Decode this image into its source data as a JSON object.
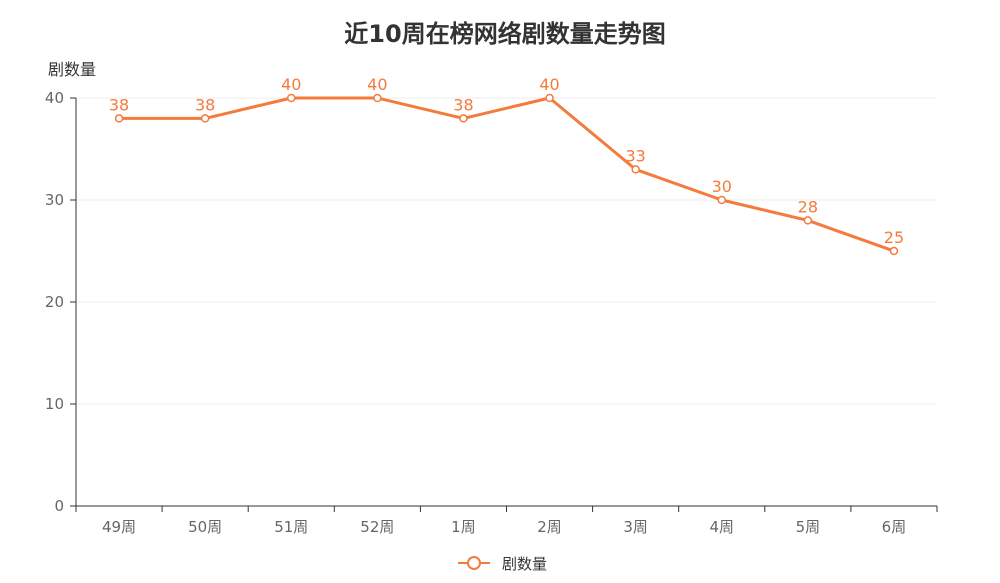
{
  "chart_data": {
    "type": "line",
    "title": "近10周在榜网络剧数量走势图",
    "xlabel": "",
    "ylabel": "剧数量",
    "categories": [
      "49周",
      "50周",
      "51周",
      "52周",
      "1周",
      "2周",
      "3周",
      "4周",
      "5周",
      "6周"
    ],
    "series": [
      {
        "name": "剧数量",
        "values": [
          38,
          38,
          40,
          40,
          38,
          40,
          33,
          30,
          28,
          25
        ]
      }
    ],
    "ylim": [
      0,
      40
    ],
    "yticks": [
      0,
      10,
      20,
      30,
      40
    ],
    "grid": true,
    "legend_position": "bottom-center",
    "data_labels": true,
    "color": "#f47b3c"
  }
}
